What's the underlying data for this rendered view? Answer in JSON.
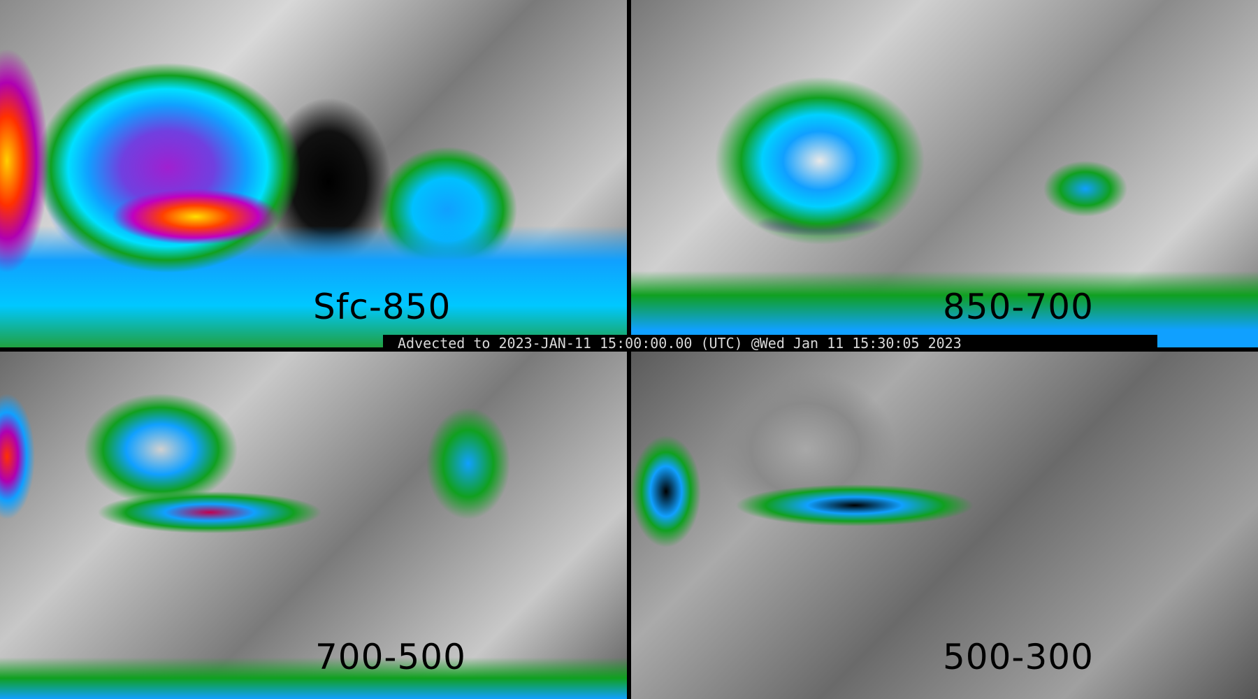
{
  "panels": [
    {
      "label": "Sfc-850"
    },
    {
      "label": "850-700"
    },
    {
      "label": "700-500"
    },
    {
      "label": "500-300"
    }
  ],
  "banner": {
    "text": "Advected to 2023-JAN-11 15:00:00.00 (UTC) @Wed Jan 11 15:30:05 2023"
  },
  "colors": {
    "scale": [
      "#6a6a6a",
      "#ffffff",
      "#10a020",
      "#10a0ff",
      "#00e0ff",
      "#a020d0",
      "#c00060",
      "#ff3000",
      "#ffd000"
    ]
  }
}
